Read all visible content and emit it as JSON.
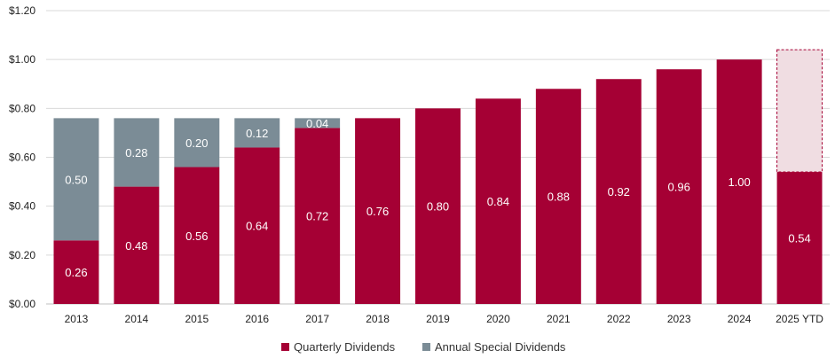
{
  "chart_data": {
    "type": "bar",
    "stacked": true,
    "title": "",
    "xlabel": "",
    "ylabel": "",
    "ylim": [
      0,
      1.2
    ],
    "y_ticks": [
      "$0.00",
      "$0.20",
      "$0.40",
      "$0.60",
      "$0.80",
      "$1.00",
      "$1.20"
    ],
    "grid": true,
    "legend_position": "bottom",
    "categories": [
      "2013",
      "2014",
      "2015",
      "2016",
      "2017",
      "2018",
      "2019",
      "2020",
      "2021",
      "2022",
      "2023",
      "2024",
      "2025 YTD"
    ],
    "series": [
      {
        "name": "Quarterly Dividends",
        "color": "#a50034",
        "values": [
          0.26,
          0.48,
          0.56,
          0.64,
          0.72,
          0.76,
          0.8,
          0.84,
          0.88,
          0.92,
          0.96,
          1.0,
          0.54
        ],
        "labels": [
          "0.26",
          "0.48",
          "0.56",
          "0.64",
          "0.72",
          "0.76",
          "0.80",
          "0.84",
          "0.88",
          "0.92",
          "0.96",
          "1.00",
          "0.54"
        ]
      },
      {
        "name": "Annual Special Dividends",
        "color": "#7b8c96",
        "values": [
          0.5,
          0.28,
          0.2,
          0.12,
          0.04,
          0,
          0,
          0,
          0,
          0,
          0,
          0,
          0
        ],
        "labels": [
          "0.50",
          "0.28",
          "0.20",
          "0.12",
          "0.04",
          "",
          "",
          "",
          "",
          "",
          "",
          "",
          ""
        ]
      }
    ],
    "projected": {
      "category": "2025 YTD",
      "from": 0.54,
      "to": 1.04,
      "fill": "#f0dde2",
      "stroke": "#a50034"
    }
  }
}
